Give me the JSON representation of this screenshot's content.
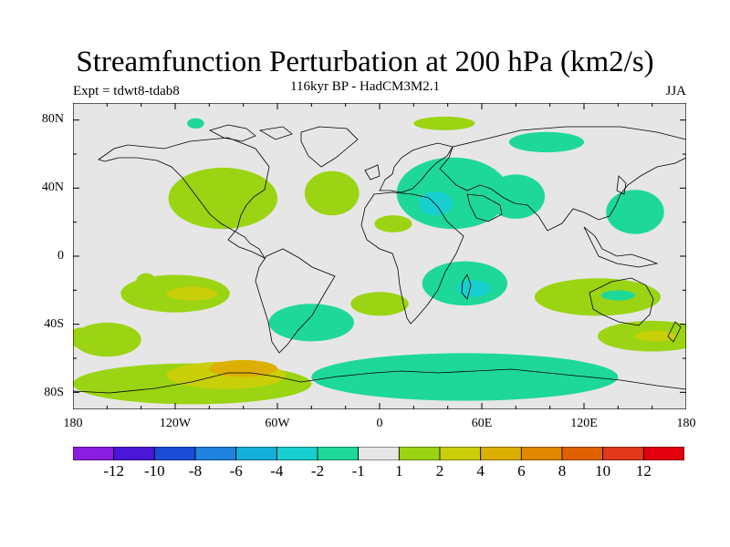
{
  "header": {
    "title": "Streamfunction Perturbation at 200 hPa (km2/s)",
    "subtitle": "116kyr BP - HadCM3M2.1",
    "expt": "Expt = tdwt8-tdab8",
    "season": "JJA"
  },
  "map": {
    "projection": "cylindrical-equidistant",
    "lon_range": [
      -180,
      180
    ],
    "lat_range": [
      -90,
      90
    ],
    "background_color": "#e6e6e6",
    "lat_ticks": [
      "80N",
      "40N",
      "0",
      "40S",
      "80S"
    ],
    "lon_ticks": [
      "180",
      "120W",
      "60W",
      "0",
      "60E",
      "120E",
      "180"
    ]
  },
  "colorbar": {
    "colors": [
      "#8a1ee0",
      "#4a16d8",
      "#1a4cd8",
      "#1e82de",
      "#14afd8",
      "#18cfcf",
      "#1ed89a",
      "#e6e6e6",
      "#9bd412",
      "#c9cf08",
      "#dcb000",
      "#e08800",
      "#e06000",
      "#e03818",
      "#e0000e"
    ],
    "labels": [
      "-12",
      "-10",
      "-8",
      "-6",
      "-4",
      "-2",
      "-1",
      "1",
      "2",
      "4",
      "6",
      "8",
      "10",
      "12"
    ]
  },
  "anomalies": [
    {
      "lon": -137,
      "lat": -15,
      "rx": 6,
      "ry": 5,
      "level": 1
    },
    {
      "lon": -120,
      "lat": -22,
      "rx": 32,
      "ry": 11,
      "level": 1
    },
    {
      "lon": -110,
      "lat": -22,
      "rx": 15,
      "ry": 4,
      "level": 2
    },
    {
      "lon": -160,
      "lat": -49,
      "rx": 20,
      "ry": 10,
      "level": 1
    },
    {
      "lon": -92,
      "lat": 34,
      "rx": 32,
      "ry": 18,
      "level": 1
    },
    {
      "lon": -28,
      "lat": 37,
      "rx": 16,
      "ry": 13,
      "level": 1
    },
    {
      "lon": 8,
      "lat": 19,
      "rx": 11,
      "ry": 5,
      "level": 1
    },
    {
      "lon": -110,
      "lat": -75,
      "rx": 70,
      "ry": 12,
      "level": 1
    },
    {
      "lon": -90,
      "lat": -70,
      "rx": 35,
      "ry": 8,
      "level": 2
    },
    {
      "lon": -80,
      "lat": -66,
      "rx": 20,
      "ry": 5,
      "level": 3
    },
    {
      "lon": -176,
      "lat": -48,
      "rx": 6,
      "ry": 6,
      "level": 1
    },
    {
      "lon": -40,
      "lat": -39,
      "rx": 25,
      "ry": 11,
      "level": -1
    },
    {
      "lon": 0,
      "lat": -28,
      "rx": 17,
      "ry": 7,
      "level": 1
    },
    {
      "lon": 43,
      "lat": 37,
      "rx": 33,
      "ry": 21,
      "level": -1
    },
    {
      "lon": 33,
      "lat": 31,
      "rx": 10,
      "ry": 7,
      "level": -2
    },
    {
      "lon": 38,
      "lat": 78,
      "rx": 18,
      "ry": 4,
      "level": 1
    },
    {
      "lon": 98,
      "lat": 67,
      "rx": 22,
      "ry": 6,
      "level": -1
    },
    {
      "lon": 80,
      "lat": 35,
      "rx": 17,
      "ry": 13,
      "level": -1
    },
    {
      "lon": 150,
      "lat": 26,
      "rx": 17,
      "ry": 13,
      "level": -1
    },
    {
      "lon": 50,
      "lat": -16,
      "rx": 25,
      "ry": 13,
      "level": -1
    },
    {
      "lon": 55,
      "lat": -19,
      "rx": 10,
      "ry": 5,
      "level": -2
    },
    {
      "lon": 128,
      "lat": -24,
      "rx": 37,
      "ry": 11,
      "level": 1
    },
    {
      "lon": 140,
      "lat": -23,
      "rx": 10,
      "ry": 3,
      "level": -1
    },
    {
      "lon": 160,
      "lat": -47,
      "rx": 32,
      "ry": 9,
      "level": 1
    },
    {
      "lon": 162,
      "lat": -47,
      "rx": 12,
      "ry": 3,
      "level": 2
    },
    {
      "lon": 50,
      "lat": -71,
      "rx": 90,
      "ry": 14,
      "level": -1
    },
    {
      "lon": -108,
      "lat": 78,
      "rx": 5,
      "ry": 3,
      "level": -1
    }
  ]
}
